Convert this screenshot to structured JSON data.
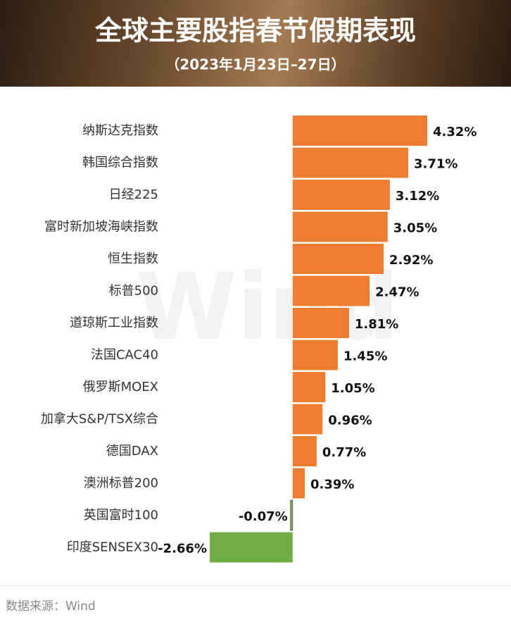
{
  "chart_data": {
    "type": "bar",
    "orientation": "horizontal",
    "title": "全球主要股指春节假期表现",
    "subtitle": "（2023年1月23日–27日）",
    "categories": [
      "纳斯达克指数",
      "韩国综合指数",
      "日经225",
      "富时新加坡海峡指数",
      "恒生指数",
      "标普500",
      "道琼斯工业指数",
      "法国CAC40",
      "俄罗斯MOEX",
      "加拿大S&P/TSX综合",
      "德国DAX",
      "澳洲标普200",
      "英国富时100",
      "印度SENSEX30"
    ],
    "values": [
      4.32,
      3.71,
      3.12,
      3.05,
      2.92,
      2.47,
      1.81,
      1.45,
      1.05,
      0.96,
      0.77,
      0.39,
      -0.07,
      -2.66
    ],
    "value_labels": [
      "4.32%",
      "3.71%",
      "3.12%",
      "3.05%",
      "2.92%",
      "2.47%",
      "1.81%",
      "1.45%",
      "1.05%",
      "0.96%",
      "0.77%",
      "0.39%",
      "-0.07%",
      "-2.66%"
    ],
    "color": "#ED7D31",
    "negative_color": "#70AD47",
    "watermark": "Wind",
    "source": "数据来源：Wind"
  }
}
